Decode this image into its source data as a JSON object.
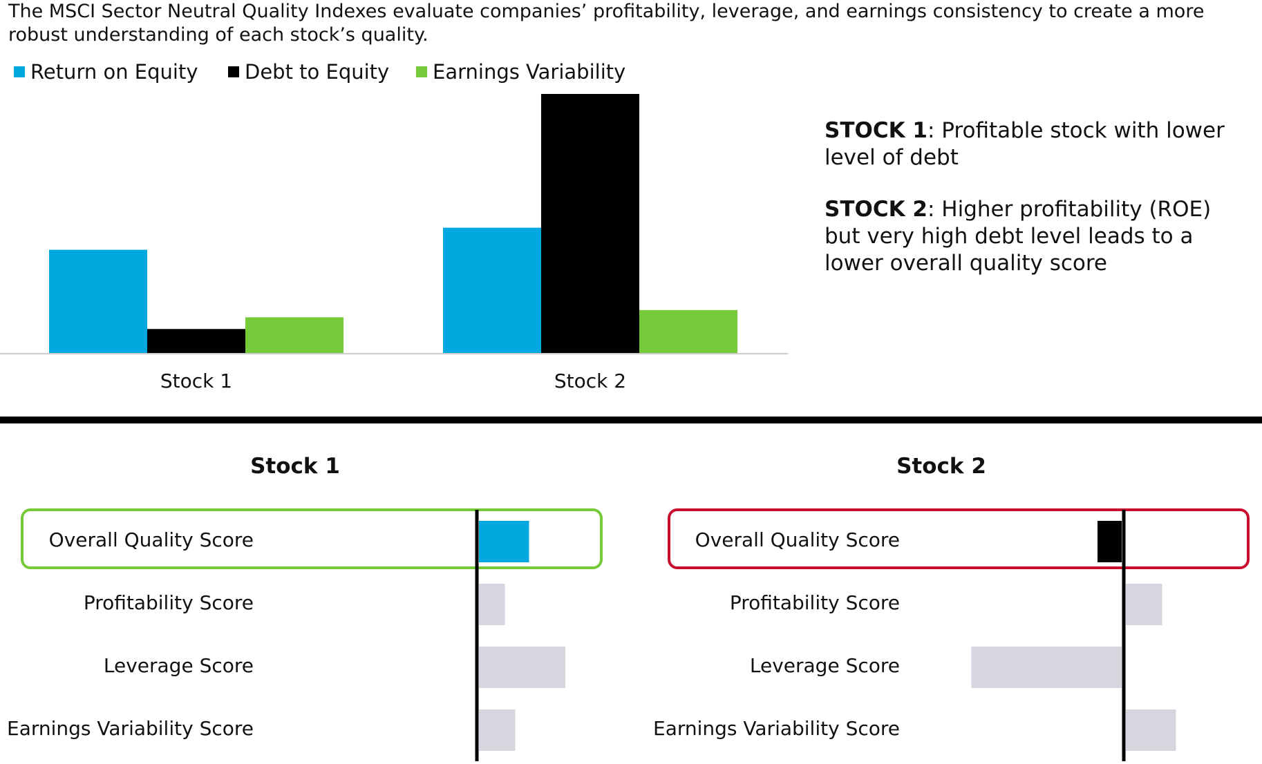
{
  "intro_text": "The MSCI Sector Neutral Quality Indexes evaluate companies’ profitability, leverage, and earnings consistency to create a more robust understanding of each stock’s quality.",
  "colors": {
    "return_on_equity": "#00a8e0",
    "debt_to_equity": "#000000",
    "earnings_variability": "#76c938",
    "component_bar": "#d7d6de",
    "stock1_box": "#76c938",
    "stock2_box": "#c8102e",
    "baseline": "#cccccc"
  },
  "notes": {
    "stock1_label": "STOCK 1",
    "stock1_text": ":  Profitable stock with lower level of debt",
    "stock2_label": "STOCK 2",
    "stock2_text": ": Higher profitability (ROE) but very high debt level leads to a lower overall quality score"
  },
  "chart_data": [
    {
      "type": "bar",
      "categories": [
        "Stock 1",
        "Stock 2"
      ],
      "series": [
        {
          "name": "Return on Equity",
          "values": [
            40,
            48.5
          ]
        },
        {
          "name": "Debt to Equity",
          "values": [
            9.5,
            100
          ]
        },
        {
          "name": "Earnings Variability",
          "values": [
            14,
            16.8
          ]
        }
      ],
      "ylim": [
        0,
        100
      ],
      "grid": false,
      "legend": "top-left"
    },
    {
      "type": "bar",
      "orientation": "horizontal",
      "title": "Stock 1",
      "categories": [
        "Overall Quality Score",
        "Profitability Score",
        "Leverage Score",
        "Earnings Variability Score"
      ],
      "values": [
        0.29,
        0.15,
        0.5,
        0.21
      ],
      "highlight": "Overall Quality Score",
      "highlight_color": "#76c938"
    },
    {
      "type": "bar",
      "orientation": "horizontal",
      "title": "Stock 2",
      "categories": [
        "Overall Quality Score",
        "Profitability Score",
        "Leverage Score",
        "Earnings Variability Score"
      ],
      "values": [
        -0.14,
        0.21,
        -0.87,
        0.29
      ],
      "highlight": "Overall Quality Score",
      "highlight_color": "#c8102e"
    }
  ]
}
